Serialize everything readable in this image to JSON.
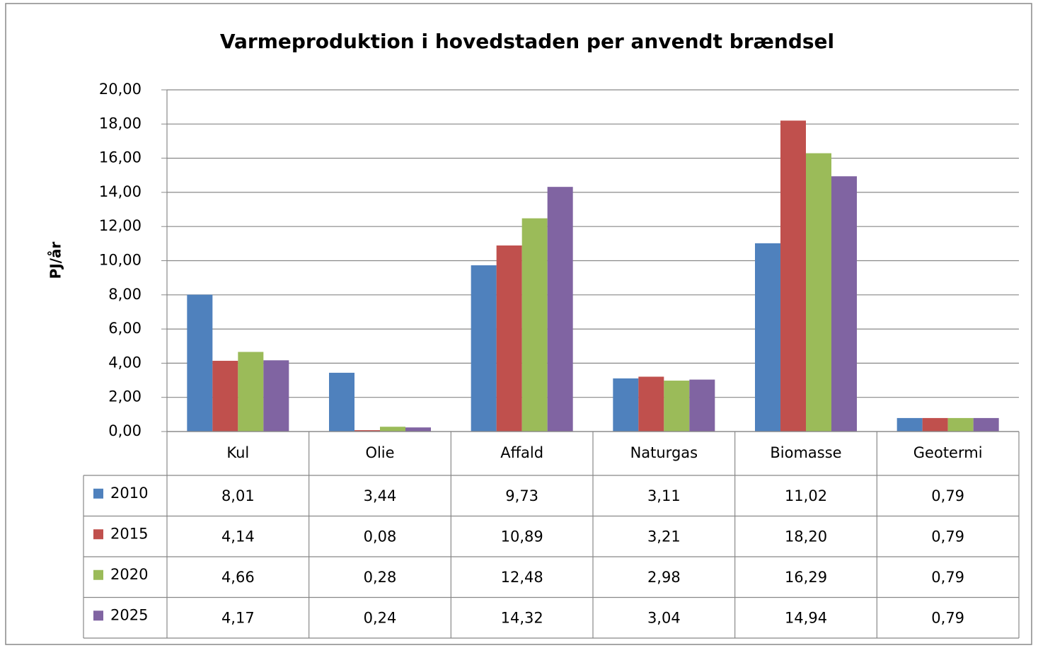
{
  "chart_data": {
    "type": "bar",
    "title": "Varmeproduktion i hovedstaden per anvendt brændsel",
    "y_label": "PJ/år",
    "categories": [
      "Kul",
      "Olie",
      "Affald",
      "Naturgas",
      "Biomasse",
      "Geotermi"
    ],
    "series": [
      {
        "name": "2010",
        "color": "#4f81bd",
        "values": [
          8.01,
          3.44,
          9.73,
          3.11,
          11.02,
          0.79
        ],
        "value_labels": [
          "8,01",
          "3,44",
          "9,73",
          "3,11",
          "11,02",
          "0,79"
        ]
      },
      {
        "name": "2015",
        "color": "#c0504d",
        "values": [
          4.14,
          0.08,
          10.89,
          3.21,
          18.2,
          0.79
        ],
        "value_labels": [
          "4,14",
          "0,08",
          "10,89",
          "3,21",
          "18,20",
          "0,79"
        ]
      },
      {
        "name": "2020",
        "color": "#9bbb59",
        "values": [
          4.66,
          0.28,
          12.48,
          2.98,
          16.29,
          0.79
        ],
        "value_labels": [
          "4,66",
          "0,28",
          "12,48",
          "2,98",
          "16,29",
          "0,79"
        ]
      },
      {
        "name": "2025",
        "color": "#8064a2",
        "values": [
          4.17,
          0.24,
          14.32,
          3.04,
          14.94,
          0.79
        ],
        "value_labels": [
          "4,17",
          "0,24",
          "14,32",
          "3,04",
          "14,94",
          "0,79"
        ]
      }
    ],
    "ylim": [
      0,
      20
    ],
    "yticks": [
      {
        "value": 0,
        "label": "0,00"
      },
      {
        "value": 2,
        "label": "2,00"
      },
      {
        "value": 4,
        "label": "4,00"
      },
      {
        "value": 6,
        "label": "6,00"
      },
      {
        "value": 8,
        "label": "8,00"
      },
      {
        "value": 10,
        "label": "10,00"
      },
      {
        "value": 12,
        "label": "12,00"
      },
      {
        "value": 14,
        "label": "14,00"
      },
      {
        "value": 16,
        "label": "16,00"
      },
      {
        "value": 18,
        "label": "18,00"
      },
      {
        "value": 20,
        "label": "20,00"
      }
    ],
    "grid": true,
    "data_table": true
  }
}
